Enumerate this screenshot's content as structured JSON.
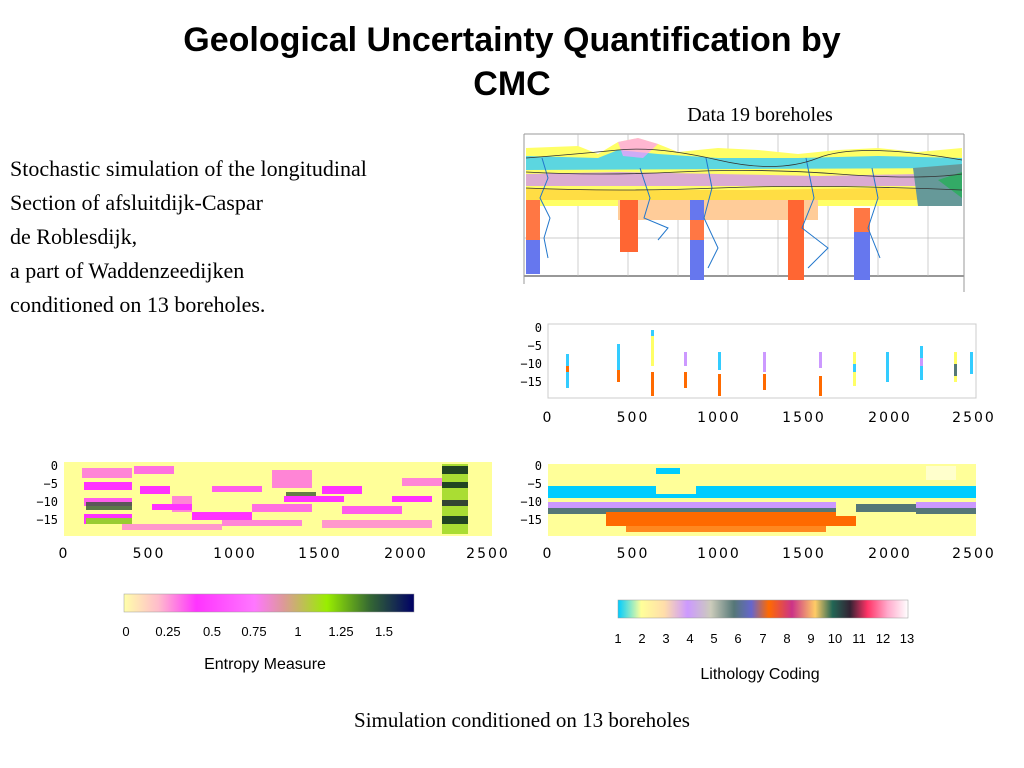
{
  "title_line1": "Geological Uncertainty Quantification by",
  "title_line2": "CMC",
  "data_label": "Data 19 boreholes",
  "description": [
    "Stochastic simulation of the longitudinal",
    "Section of afsluitdijk-Caspar",
    "de Roblesdijk,",
    "a part of Waddenzeedijken",
    "conditioned on 13 boreholes."
  ],
  "plots": {
    "y_ticks": [
      "0",
      "−5",
      "−10",
      "−15"
    ],
    "x_ticks": [
      "0",
      "500",
      "1000",
      "1500",
      "2000",
      "2500"
    ]
  },
  "entropy_colorbar": {
    "labels": [
      "0",
      "0.25",
      "0.5",
      "0.75",
      "1",
      "1.25",
      "1.5"
    ],
    "title": "Entropy Measure"
  },
  "lithology_colorbar": {
    "labels": [
      "1",
      "2",
      "3",
      "4",
      "5",
      "6",
      "7",
      "8",
      "9",
      "10",
      "11",
      "12",
      "13"
    ],
    "title": "Lithology Coding"
  },
  "caption": "Simulation conditioned on 13 boreholes",
  "colors": {
    "background_yellow": "#ffff99",
    "cyan": "#00ccff",
    "orange": "#ff6a00",
    "magenta": "#ff33ff",
    "lavender": "#cc99ff",
    "teal_gray": "#557777"
  }
}
